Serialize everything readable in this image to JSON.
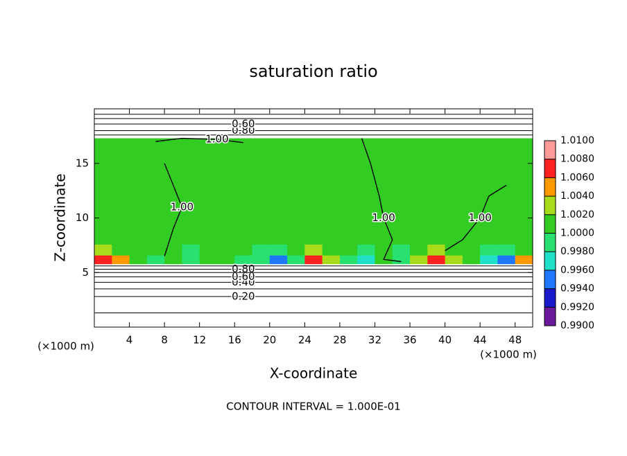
{
  "chart_data": {
    "type": "contour",
    "title": "saturation ratio",
    "x_label": "X-coordinate",
    "y_label": "Z-coordinate",
    "x_unit": "(×1000 m)",
    "y_unit": "(×1000 m)",
    "footnote": "CONTOUR INTERVAL = 1.000E-01",
    "xlim": [
      0,
      50
    ],
    "ylim": [
      0,
      20
    ],
    "xticks": [
      4,
      8,
      12,
      16,
      20,
      24,
      28,
      32,
      36,
      40,
      44,
      48
    ],
    "yticks": [
      5,
      10,
      15
    ],
    "colorbar": {
      "ticks": [
        {
          "value": 0.99,
          "label": "0.9900"
        },
        {
          "value": 0.992,
          "label": "0.9920"
        },
        {
          "value": 0.994,
          "label": "0.9940"
        },
        {
          "value": 0.996,
          "label": "0.9960"
        },
        {
          "value": 0.998,
          "label": "0.9980"
        },
        {
          "value": 1.0,
          "label": "1.0000"
        },
        {
          "value": 1.002,
          "label": "1.0020"
        },
        {
          "value": 1.004,
          "label": "1.0040"
        },
        {
          "value": 1.006,
          "label": "1.0060"
        },
        {
          "value": 1.008,
          "label": "1.0080"
        },
        {
          "value": 1.01,
          "label": "1.0100"
        }
      ],
      "colors": [
        "#6a1a9a",
        "#1a1acc",
        "#1e78ff",
        "#20e0c8",
        "#28e070",
        "#33cc22",
        "#a8dc1a",
        "#ff9900",
        "#ff2020",
        "#ff9a9a"
      ]
    },
    "field": {
      "x_edges": [
        0,
        2,
        4,
        6,
        8,
        10,
        12,
        14,
        16,
        18,
        20,
        22,
        24,
        26,
        28,
        30,
        32,
        34,
        36,
        38,
        40,
        42,
        44,
        46,
        48,
        50
      ],
      "z_edges": [
        5.8,
        6.6,
        7.6,
        10,
        13,
        17.3
      ],
      "values": [
        [
          1.007,
          1.004,
          1.001,
          0.999,
          1.0,
          0.999,
          1.0,
          1.0,
          0.999,
          0.998,
          0.995,
          0.998,
          1.007,
          1.003,
          0.999,
          0.997,
          1.0,
          0.998,
          1.003,
          1.006,
          1.003,
          1.0,
          0.996,
          0.994,
          1.004
        ],
        [
          1.002,
          1.001,
          1.0,
          1.0,
          1.0,
          0.999,
          1.0,
          1.0,
          1.0,
          0.999,
          0.998,
          1.0,
          1.002,
          1.001,
          1.0,
          0.999,
          1.0,
          0.999,
          1.001,
          1.002,
          1.001,
          1.0,
          0.999,
          0.998,
          1.001
        ],
        [
          1.001,
          1.0,
          1.0,
          1.0,
          1.0,
          1.0,
          1.0,
          1.0,
          1.0,
          1.0,
          1.0,
          1.0,
          1.001,
          1.0,
          1.0,
          1.0,
          1.0,
          1.0,
          1.0,
          1.001,
          1.0,
          1.0,
          1.0,
          1.0,
          1.0
        ],
        [
          1.0,
          1.0,
          1.0,
          1.0,
          1.0,
          1.0,
          1.0,
          1.0,
          1.0,
          1.0,
          1.0,
          1.0,
          1.0,
          1.0,
          1.0,
          1.0,
          1.0,
          1.0,
          1.0,
          1.0,
          1.0,
          1.0,
          1.0,
          1.0,
          1.0
        ],
        [
          1.0,
          1.0,
          1.0,
          1.0,
          1.0,
          1.0,
          1.0,
          1.0,
          1.0,
          1.0,
          1.0,
          1.0,
          1.0,
          1.0,
          1.0,
          1.0,
          1.0,
          1.0,
          1.0,
          1.0,
          1.0,
          1.0,
          1.0,
          1.0,
          1.0
        ]
      ]
    },
    "contours": [
      {
        "level": 0.2,
        "label": "0.20",
        "x": [
          0,
          50
        ],
        "z": [
          2.8,
          2.8
        ]
      },
      {
        "level": 0.4,
        "label": "0.40",
        "x": [
          0,
          50
        ],
        "z": [
          4.1,
          4.1
        ]
      },
      {
        "level": 0.6,
        "label": "0.60",
        "x": [
          0,
          50
        ],
        "z": [
          4.6,
          4.6
        ]
      },
      {
        "level": 0.8,
        "label": "0.80",
        "x": [
          0,
          50
        ],
        "z": [
          5.3,
          5.3
        ]
      },
      {
        "level": 0.1,
        "x": [
          0,
          50
        ],
        "z": [
          1.3,
          1.3
        ]
      },
      {
        "level": 0.3,
        "x": [
          0,
          50
        ],
        "z": [
          3.5,
          3.5
        ]
      },
      {
        "level": 0.7,
        "x": [
          0,
          50
        ],
        "z": [
          5.0,
          5.0
        ]
      },
      {
        "level": 0.9,
        "x": [
          0,
          50
        ],
        "z": [
          5.6,
          5.6
        ]
      },
      {
        "level": 0.9,
        "x": [
          0,
          50
        ],
        "z": [
          17.6,
          17.6
        ]
      },
      {
        "level": 0.8,
        "label": "0.80",
        "x": [
          0,
          50
        ],
        "z": [
          18.0,
          18.0
        ]
      },
      {
        "level": 0.6,
        "label": "0.60",
        "x": [
          0,
          50
        ],
        "z": [
          18.6,
          18.6
        ]
      },
      {
        "level": 0.4,
        "x": [
          0,
          50
        ],
        "z": [
          19.1,
          19.1
        ]
      },
      {
        "level": 0.2,
        "x": [
          0,
          50
        ],
        "z": [
          19.5,
          19.5
        ]
      },
      {
        "level": 1.0,
        "label": "1.00",
        "x": [
          7,
          10,
          14,
          17
        ],
        "z": [
          17.0,
          17.3,
          17.2,
          16.9
        ]
      },
      {
        "level": 1.0,
        "label": "1.00",
        "x": [
          30.5,
          31.5,
          32.5,
          33,
          34,
          33,
          35
        ],
        "z": [
          17.3,
          15,
          12,
          10,
          8,
          6.2,
          6
        ]
      },
      {
        "level": 1.0,
        "label": "1.00",
        "x": [
          8,
          9,
          10,
          9,
          8
        ],
        "z": [
          6.5,
          9,
          11,
          13,
          15
        ]
      },
      {
        "level": 1.0,
        "label": "1.00",
        "x": [
          40,
          42,
          44,
          45,
          47
        ],
        "z": [
          7,
          8,
          10,
          12,
          13
        ]
      }
    ]
  }
}
